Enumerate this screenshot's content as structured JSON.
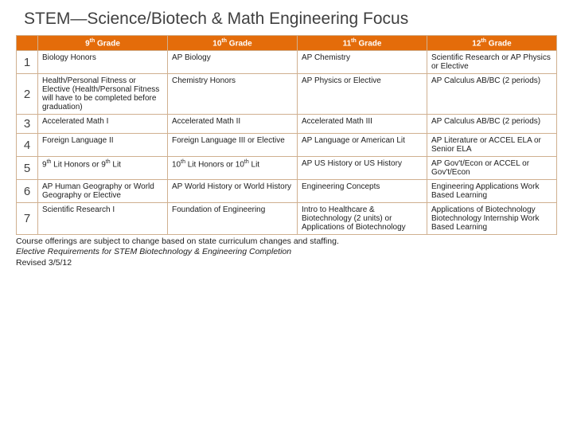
{
  "title": "STEM—Science/Biotech & Math Engineering Focus",
  "header_bg": "#e46c0a",
  "header_color": "#ffffff",
  "columns": [
    "9th Grade",
    "10th Grade",
    "11th Grade",
    "12th Grade"
  ],
  "rows": [
    {
      "n": "1",
      "c": [
        "Biology Honors",
        "AP Biology",
        "AP Chemistry",
        "Scientific Research or AP Physics or Elective"
      ]
    },
    {
      "n": "2",
      "c": [
        "Health/Personal Fitness or Elective (Health/Personal Fitness will have to be completed before graduation)",
        "Chemistry Honors",
        "AP Physics or Elective",
        "AP Calculus AB/BC (2 periods)"
      ]
    },
    {
      "n": "3",
      "c": [
        "Accelerated Math I",
        "Accelerated Math II",
        "Accelerated Math III",
        "AP Calculus AB/BC (2 periods)"
      ]
    },
    {
      "n": "4",
      "c": [
        "Foreign Language II",
        "Foreign Language III or Elective",
        "AP Language or American Lit",
        "AP Literature or ACCEL ELA or Senior ELA"
      ]
    },
    {
      "n": "5",
      "c": [
        "9th Lit Honors or 9th Lit",
        "10th Lit Honors or 10th Lit",
        "AP US History or US History",
        "AP Gov't/Econ or ACCEL or Gov't/Econ"
      ]
    },
    {
      "n": "6",
      "c": [
        "AP Human Geography or World Geography or Elective",
        "AP World History or World History",
        "Engineering Concepts",
        "Engineering Applications Work Based Learning"
      ]
    },
    {
      "n": "7",
      "c": [
        "Scientific Research I",
        "Foundation of Engineering",
        "Intro to Healthcare & Biotechnology (2 units) or Applications of Biotechnology",
        "Applications of Biotechnology Biotechnology Internship Work Based Learning"
      ]
    }
  ],
  "footer": {
    "line1": "Course offerings are subject to change based on state curriculum changes and staffing.",
    "line2": "Elective Requirements for STEM Biotechnology & Engineering Completion",
    "line3": "Revised 3/5/12"
  }
}
